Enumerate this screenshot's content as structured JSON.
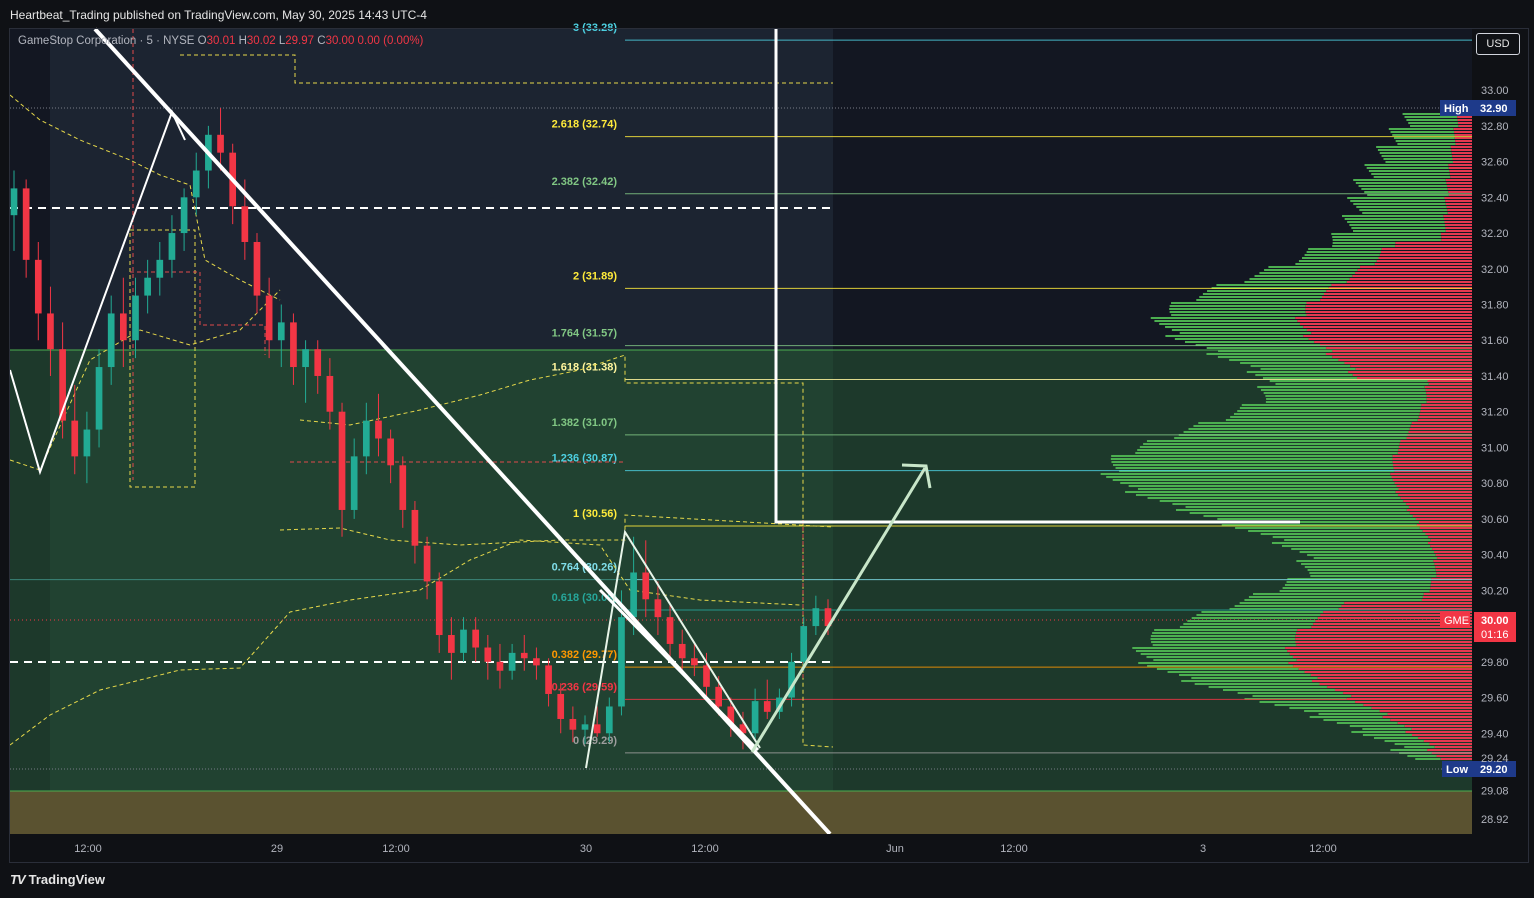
{
  "header": {
    "published": "Heartbeat_Trading published on TradingView.com, May 30, 2025 14:43 UTC-4"
  },
  "legend": {
    "symbol": "GameStop Corporation · 5 · NYSE",
    "o_label": "O",
    "o": "30.01",
    "h_label": "H",
    "h": "30.02",
    "l_label": "L",
    "l": "29.97",
    "c_label": "C",
    "c": "30.00",
    "change": "0.00 (0.00%)"
  },
  "currency_button": "USD",
  "footer": {
    "logo": "TV",
    "brand": "TradingView"
  },
  "colors": {
    "up": "#22ab94",
    "down": "#f23645",
    "fib_yellow": "#ffeb3b",
    "fib_teal": "#4dd0e1",
    "fib_green": "#81c784",
    "band_green": "#1e3b2c",
    "band_olive": "#5a5230",
    "axis_bg": "#0f1115"
  },
  "chart_data": {
    "type": "candlestick",
    "symbol": "GME",
    "ylim": [
      28.84,
      33.3
    ],
    "y_ticks": [
      "33.00",
      "32.80",
      "32.60",
      "32.40",
      "32.20",
      "32.00",
      "31.80",
      "31.60",
      "31.40",
      "31.20",
      "31.00",
      "30.80",
      "30.60",
      "30.40",
      "30.20",
      "29.80",
      "29.60",
      "29.40",
      "29.08",
      "28.92"
    ],
    "x_ticks": [
      "12:00",
      "29",
      "12:00",
      "30",
      "12:00",
      "Jun",
      "12:00",
      "3",
      "12:00"
    ],
    "price_labels": {
      "high": {
        "label": "High",
        "value": "32.90"
      },
      "low": {
        "label": "Low",
        "value": "29.20"
      },
      "last": {
        "label": "GME",
        "value": "30.00",
        "countdown": "01:16"
      },
      "partial_low": "29.24"
    },
    "fib_levels": [
      {
        "ratio": "3",
        "price": "33.28",
        "color": "#4dd0e1"
      },
      {
        "ratio": "2.618",
        "price": "32.74",
        "color": "#ffeb3b"
      },
      {
        "ratio": "2.382",
        "price": "32.42",
        "color": "#81c784"
      },
      {
        "ratio": "2",
        "price": "31.89",
        "color": "#ffeb3b"
      },
      {
        "ratio": "1.764",
        "price": "31.57",
        "color": "#81c784"
      },
      {
        "ratio": "1.618",
        "price": "31.38",
        "color": "#fff59d"
      },
      {
        "ratio": "1.382",
        "price": "31.07",
        "color": "#81c784"
      },
      {
        "ratio": "1.236",
        "price": "30.87",
        "color": "#4dd0e1"
      },
      {
        "ratio": "1",
        "price": "30.56",
        "color": "#ffeb3b"
      },
      {
        "ratio": "0.764",
        "price": "30.26",
        "color": "#80deea"
      },
      {
        "ratio": "0.618",
        "price": "30.09",
        "color": "#26a69a"
      },
      {
        "ratio": "0.382",
        "price": "29.77",
        "color": "#ff9800"
      },
      {
        "ratio": "0.236",
        "price": "29.59",
        "color": "#f23645"
      },
      {
        "ratio": "0",
        "price": "29.29",
        "color": "#9e9e9e"
      }
    ],
    "series": [
      {
        "name": "",
        "ohlc": [
          [
            32.3,
            32.55,
            32.1,
            32.45
          ],
          [
            32.45,
            32.5,
            31.95,
            32.05
          ],
          [
            32.05,
            32.15,
            31.6,
            31.75
          ],
          [
            31.75,
            31.9,
            31.4,
            31.55
          ],
          [
            31.55,
            31.7,
            31.05,
            31.15
          ],
          [
            31.15,
            31.35,
            30.85,
            30.95
          ],
          [
            30.95,
            31.2,
            30.8,
            31.1
          ],
          [
            31.1,
            31.55,
            31.0,
            31.45
          ],
          [
            31.45,
            31.85,
            31.35,
            31.75
          ],
          [
            31.75,
            31.95,
            31.45,
            31.6
          ],
          [
            31.6,
            31.95,
            31.5,
            31.85
          ],
          [
            31.85,
            32.05,
            31.75,
            31.95
          ],
          [
            31.95,
            32.15,
            31.85,
            32.05
          ],
          [
            32.05,
            32.3,
            31.95,
            32.2
          ],
          [
            32.2,
            32.45,
            32.1,
            32.4
          ],
          [
            32.4,
            32.65,
            32.3,
            32.55
          ],
          [
            32.55,
            32.8,
            32.45,
            32.75
          ],
          [
            32.75,
            32.9,
            32.55,
            32.65
          ],
          [
            32.65,
            32.7,
            32.25,
            32.35
          ],
          [
            32.35,
            32.5,
            32.05,
            32.15
          ],
          [
            32.15,
            32.2,
            31.75,
            31.85
          ],
          [
            31.85,
            31.95,
            31.5,
            31.6
          ],
          [
            31.6,
            31.8,
            31.45,
            31.7
          ],
          [
            31.7,
            31.75,
            31.35,
            31.45
          ],
          [
            31.45,
            31.6,
            31.25,
            31.55
          ],
          [
            31.55,
            31.6,
            31.3,
            31.4
          ],
          [
            31.4,
            31.5,
            31.1,
            31.2
          ],
          [
            31.2,
            31.25,
            30.5,
            30.65
          ],
          [
            30.65,
            31.05,
            30.6,
            30.95
          ],
          [
            30.95,
            31.25,
            30.85,
            31.15
          ],
          [
            31.15,
            31.3,
            30.95,
            31.05
          ],
          [
            31.05,
            31.1,
            30.8,
            30.9
          ],
          [
            30.9,
            30.95,
            30.55,
            30.65
          ],
          [
            30.65,
            30.7,
            30.35,
            30.45
          ],
          [
            30.45,
            30.5,
            30.15,
            30.25
          ],
          [
            30.25,
            30.3,
            29.85,
            29.95
          ],
          [
            29.95,
            30.05,
            29.7,
            29.85
          ],
          [
            29.85,
            30.05,
            29.8,
            29.98
          ],
          [
            29.98,
            30.05,
            29.8,
            29.88
          ],
          [
            29.88,
            29.95,
            29.7,
            29.8
          ],
          [
            29.8,
            29.9,
            29.65,
            29.75
          ],
          [
            29.75,
            29.9,
            29.7,
            29.85
          ],
          [
            29.85,
            29.95,
            29.75,
            29.82
          ],
          [
            29.82,
            29.88,
            29.7,
            29.78
          ],
          [
            29.78,
            29.82,
            29.55,
            29.62
          ],
          [
            29.62,
            29.68,
            29.4,
            29.48
          ],
          [
            29.48,
            29.55,
            29.35,
            29.42
          ],
          [
            29.42,
            29.5,
            29.34,
            29.45
          ],
          [
            29.45,
            29.55,
            29.38,
            29.4
          ],
          [
            29.4,
            29.6,
            29.35,
            29.55
          ],
          [
            29.55,
            30.2,
            29.5,
            30.05
          ],
          [
            30.05,
            30.5,
            29.95,
            30.3
          ],
          [
            30.3,
            30.48,
            30.05,
            30.15
          ],
          [
            30.15,
            30.25,
            29.95,
            30.05
          ],
          [
            30.05,
            30.12,
            29.8,
            29.9
          ],
          [
            29.9,
            29.98,
            29.75,
            29.82
          ],
          [
            29.82,
            29.9,
            29.72,
            29.78
          ],
          [
            29.78,
            29.85,
            29.6,
            29.66
          ],
          [
            29.66,
            29.72,
            29.5,
            29.55
          ],
          [
            29.55,
            29.6,
            29.38,
            29.45
          ],
          [
            29.45,
            29.52,
            29.31,
            29.4
          ],
          [
            29.4,
            29.65,
            29.36,
            29.58
          ],
          [
            29.58,
            29.7,
            29.48,
            29.52
          ],
          [
            29.52,
            29.65,
            29.48,
            29.6
          ],
          [
            29.6,
            29.85,
            29.55,
            29.8
          ],
          [
            29.8,
            30.05,
            29.75,
            30.0
          ],
          [
            30.0,
            30.17,
            29.95,
            30.1
          ],
          [
            30.1,
            30.15,
            29.95,
            30.0
          ]
        ]
      }
    ]
  }
}
